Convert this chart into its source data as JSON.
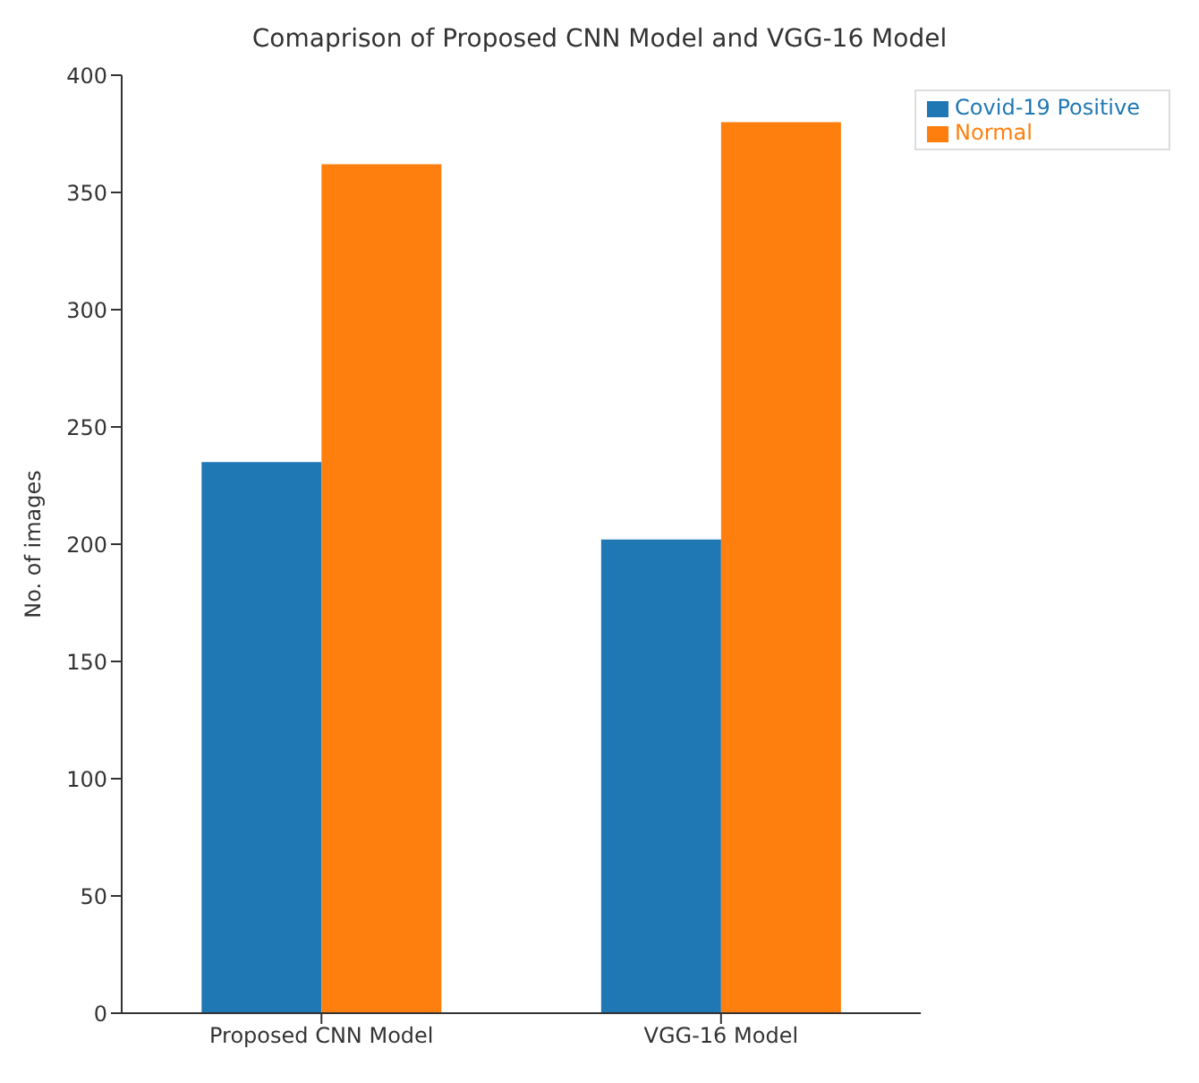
{
  "chart_data": {
    "type": "bar",
    "title": "Comaprison of Proposed CNN Model and VGG-16 Model",
    "ylabel": "No. of images",
    "categories": [
      "Proposed CNN Model",
      "VGG-16 Model"
    ],
    "series": [
      {
        "name": "Covid-19 Positive",
        "color": "#1f77b4",
        "values": [
          235,
          202
        ]
      },
      {
        "name": "Normal",
        "color": "#ff7f0e",
        "values": [
          362,
          380
        ]
      }
    ],
    "ylim": [
      0,
      400
    ],
    "yticks": [
      0,
      50,
      100,
      150,
      200,
      250,
      300,
      350,
      400
    ],
    "grid": false,
    "legend": "top right"
  }
}
